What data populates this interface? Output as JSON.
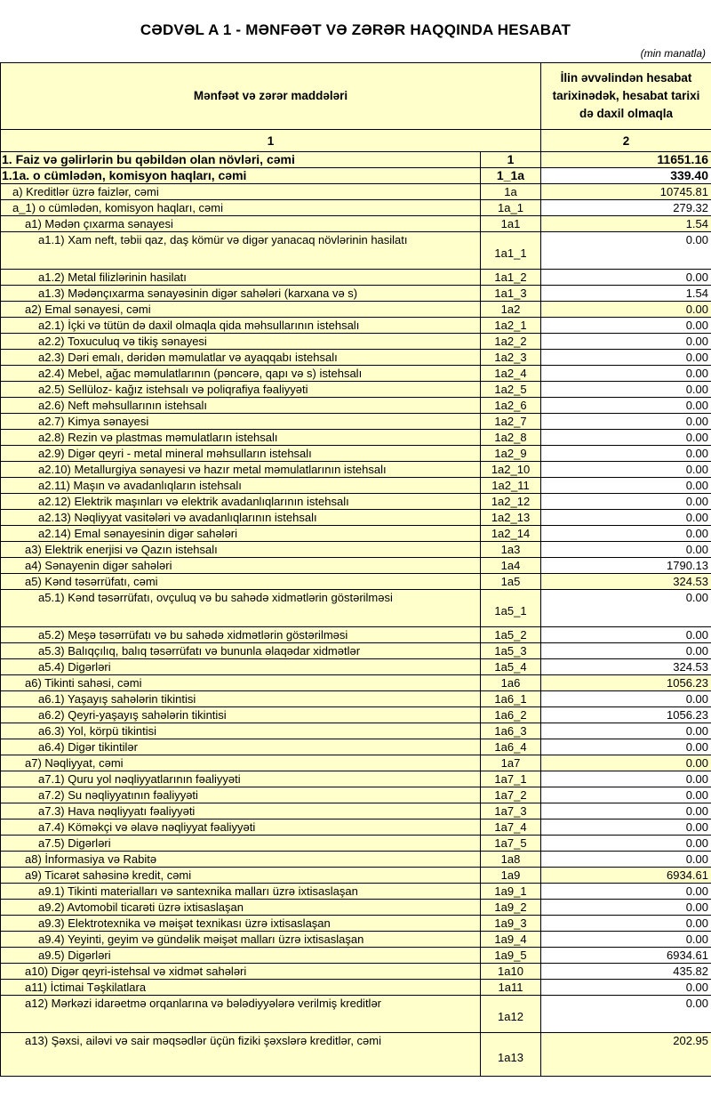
{
  "title": "CƏDVƏL A 1 - MƏNFƏƏT VƏ ZƏRƏR HAQQINDA HESABAT",
  "unit": "(min manatla)",
  "header": {
    "col1": "Mənfəət və zərər maddələri",
    "col2": "İlin əvvəlindən hesabat tarixinədək, hesabat tarixi də daxil olmaqla",
    "num1": "1",
    "num2": "2"
  },
  "colors": {
    "cell_fill": "#ffffcc",
    "white": "#ffffff"
  },
  "rows": [
    {
      "label": "1. Faiz və gəlirlərin bu qəbildən olan növləri, cəmi",
      "code": "1",
      "value": "11651.16",
      "level": 0,
      "bold": true,
      "highlight": true
    },
    {
      "label": "1.1a. o cümlədən, komisyon haqları, cəmi",
      "code": "1_1a",
      "value": "339.40",
      "level": 0,
      "bold": true,
      "highlight": false
    },
    {
      "label": "a) Kreditlər üzrə faizlər, cəmi",
      "code": "1a",
      "value": "10745.81",
      "level": 1,
      "highlight": true
    },
    {
      "label": "a_1) o cümlədən, komisyon haqları, cəmi",
      "code": "1a_1",
      "value": "279.32",
      "level": 1,
      "highlight": false
    },
    {
      "label": "a1) Mədən çıxarma sənayesi",
      "code": "1a1",
      "value": "1.54",
      "level": 2,
      "highlight": true
    },
    {
      "label": "a1.1) Xam neft, təbii qaz, daş kömür və digər yanacaq növlərinin hasilatı",
      "code": "1a1_1",
      "value": "0.00",
      "level": 3,
      "tall": true
    },
    {
      "label": "a1.2) Metal filizlərinin hasilatı",
      "code": "1a1_2",
      "value": "0.00",
      "level": 3
    },
    {
      "label": "a1.3) Mədənçıxarma sənayəsinin digər sahələri (karxana və s)",
      "code": "1a1_3",
      "value": "1.54",
      "level": 3
    },
    {
      "label": "a2) Emal sənayesi, cəmi",
      "code": "1a2",
      "value": "0.00",
      "level": 2,
      "highlight": true
    },
    {
      "label": "a2.1) İçki və tütün də daxil olmaqla qida məhsullarının istehsalı",
      "code": "1a2_1",
      "value": "0.00",
      "level": 3
    },
    {
      "label": "a2.2) Toxuculuq və tikiş sənayesi",
      "code": "1a2_2",
      "value": "0.00",
      "level": 3
    },
    {
      "label": "a2.3) Dəri emalı, dəridən məmulatlar və ayaqqabı istehsalı",
      "code": "1a2_3",
      "value": "0.00",
      "level": 3
    },
    {
      "label": "a2.4) Mebel, ağac məmulatlarının (pəncərə, qapı və s) istehsalı",
      "code": "1a2_4",
      "value": "0.00",
      "level": 3
    },
    {
      "label": "a2.5) Sellüloz- kağız istehsalı və poliqrafiya fəaliyyəti",
      "code": "1a2_5",
      "value": "0.00",
      "level": 3
    },
    {
      "label": "a2.6) Neft məhsullarının istehsalı",
      "code": "1a2_6",
      "value": "0.00",
      "level": 3
    },
    {
      "label": "a2.7) Kimya sənayesi",
      "code": "1a2_7",
      "value": "0.00",
      "level": 3
    },
    {
      "label": "a2.8) Rezin və plastmas məmulatların istehsalı",
      "code": "1a2_8",
      "value": "0.00",
      "level": 3
    },
    {
      "label": "a2.9) Digər qeyri - metal mineral məhsulların istehsalı",
      "code": "1a2_9",
      "value": "0.00",
      "level": 3
    },
    {
      "label": "a2.10) Metallurgiya sənayesi və hazır metal məmulatlarının istehsalı",
      "code": "1a2_10",
      "value": "0.00",
      "level": 3
    },
    {
      "label": "a2.11) Maşın və avadanlıqların istehsalı",
      "code": "1a2_11",
      "value": "0.00",
      "level": 3
    },
    {
      "label": "a2.12) Elektrik maşınları və elektrik avadanlıqlarının istehsalı",
      "code": "1a2_12",
      "value": "0.00",
      "level": 3
    },
    {
      "label": "a2.13) Nəqliyyat vasitələri və avadanlıqlarının istehsalı",
      "code": "1a2_13",
      "value": "0.00",
      "level": 3
    },
    {
      "label": "a2.14) Emal sənayesinin digər sahələri",
      "code": "1a2_14",
      "value": "0.00",
      "level": 3
    },
    {
      "label": "a3) Elektrik enerjisi və Qazın istehsalı",
      "code": "1a3",
      "value": "0.00",
      "level": 2
    },
    {
      "label": "a4) Sənayenin digər sahələri",
      "code": "1a4",
      "value": "1790.13",
      "level": 2
    },
    {
      "label": "a5) Kənd təsərrüfatı, cəmi",
      "code": "1a5",
      "value": "324.53",
      "level": 2,
      "highlight": true
    },
    {
      "label": "a5.1) Kənd təsərrüfatı, ovçuluq və bu sahədə xidmətlərin göstərilməsi",
      "code": "1a5_1",
      "value": "0.00",
      "level": 3,
      "tall": true
    },
    {
      "label": "a5.2) Meşə təsərrüfatı və bu sahədə xidmətlərin göstərilməsi",
      "code": "1a5_2",
      "value": "0.00",
      "level": 3
    },
    {
      "label": "a5.3) Balıqçılıq, balıq təsərrüfatı və bununla əlaqədar xidmətlər",
      "code": "1a5_3",
      "value": "0.00",
      "level": 3
    },
    {
      "label": "a5.4) Digərləri",
      "code": "1a5_4",
      "value": "324.53",
      "level": 3
    },
    {
      "label": "a6) Tikinti sahəsi, cəmi",
      "code": "1a6",
      "value": "1056.23",
      "level": 2,
      "highlight": true
    },
    {
      "label": "a6.1) Yaşayış sahələrin tikintisi",
      "code": "1a6_1",
      "value": "0.00",
      "level": 3
    },
    {
      "label": "a6.2) Qeyri-yaşayış sahələrin tikintisi",
      "code": "1a6_2",
      "value": "1056.23",
      "level": 3
    },
    {
      "label": "a6.3) Yol, körpü tikintisi",
      "code": "1a6_3",
      "value": "0.00",
      "level": 3
    },
    {
      "label": "a6.4) Digər tikintilər",
      "code": "1a6_4",
      "value": "0.00",
      "level": 3
    },
    {
      "label": "a7) Nəqliyyat, cəmi",
      "code": "1a7",
      "value": "0.00",
      "level": 2,
      "highlight": true
    },
    {
      "label": "a7.1) Quru yol nəqliyyatlarının fəaliyyəti",
      "code": "1a7_1",
      "value": "0.00",
      "level": 3
    },
    {
      "label": "a7.2) Su nəqliyyatının fəaliyyəti",
      "code": "1a7_2",
      "value": "0.00",
      "level": 3
    },
    {
      "label": "a7.3) Hava nəqliyyatı fəaliyyəti",
      "code": "1a7_3",
      "value": "0.00",
      "level": 3
    },
    {
      "label": "a7.4) Köməkçi və əlavə nəqliyyat fəaliyyəti",
      "code": "1a7_4",
      "value": "0.00",
      "level": 3
    },
    {
      "label": "a7.5) Digərləri",
      "code": "1a7_5",
      "value": "0.00",
      "level": 3
    },
    {
      "label": "a8)  İnformasiya və Rabitə",
      "code": "1a8",
      "value": "0.00",
      "level": 2
    },
    {
      "label": "a9) Ticarət sahəsinə kredit, cəmi",
      "code": "1a9",
      "value": "6934.61",
      "level": 2,
      "highlight": true
    },
    {
      "label": "a9.1) Tikinti materialları və santexnika malları üzrə ixtisaslaşan",
      "code": "1a9_1",
      "value": "0.00",
      "level": 3
    },
    {
      "label": "a9.2) Avtomobil ticarəti üzrə ixtisaslaşan",
      "code": "1a9_2",
      "value": "0.00",
      "level": 3
    },
    {
      "label": "a9.3) Elektrotexnika və məişət texnikası üzrə ixtisaslaşan",
      "code": "1a9_3",
      "value": "0.00",
      "level": 3
    },
    {
      "label": "a9.4) Yeyinti, geyim və gündəlik məişət malları üzrə ixtisaslaşan",
      "code": "1a9_4",
      "value": "0.00",
      "level": 3
    },
    {
      "label": "a9.5) Digərləri",
      "code": "1a9_5",
      "value": "6934.61",
      "level": 3
    },
    {
      "label": "a10) Digər qeyri-istehsal və xidmət sahələri",
      "code": "1a10",
      "value": "435.82",
      "level": 2
    },
    {
      "label": "a11) İctimai Təşkilatlara",
      "code": "1a11",
      "value": "0.00",
      "level": 2
    },
    {
      "label": "a12) Mərkəzi  idarəetmə orqanlarına və bələdiyyələrə verilmiş kreditlər",
      "code": "1a12",
      "value": "0.00",
      "level": 2,
      "tall": true
    },
    {
      "label": "a13) Şəxsi, ailəvi və sair məqsədlər üçün fiziki şəxslərə kreditlər, cəmi",
      "code": "1a13",
      "value": "202.95",
      "level": 2,
      "tall": true,
      "taller": true,
      "highlight": true
    }
  ]
}
